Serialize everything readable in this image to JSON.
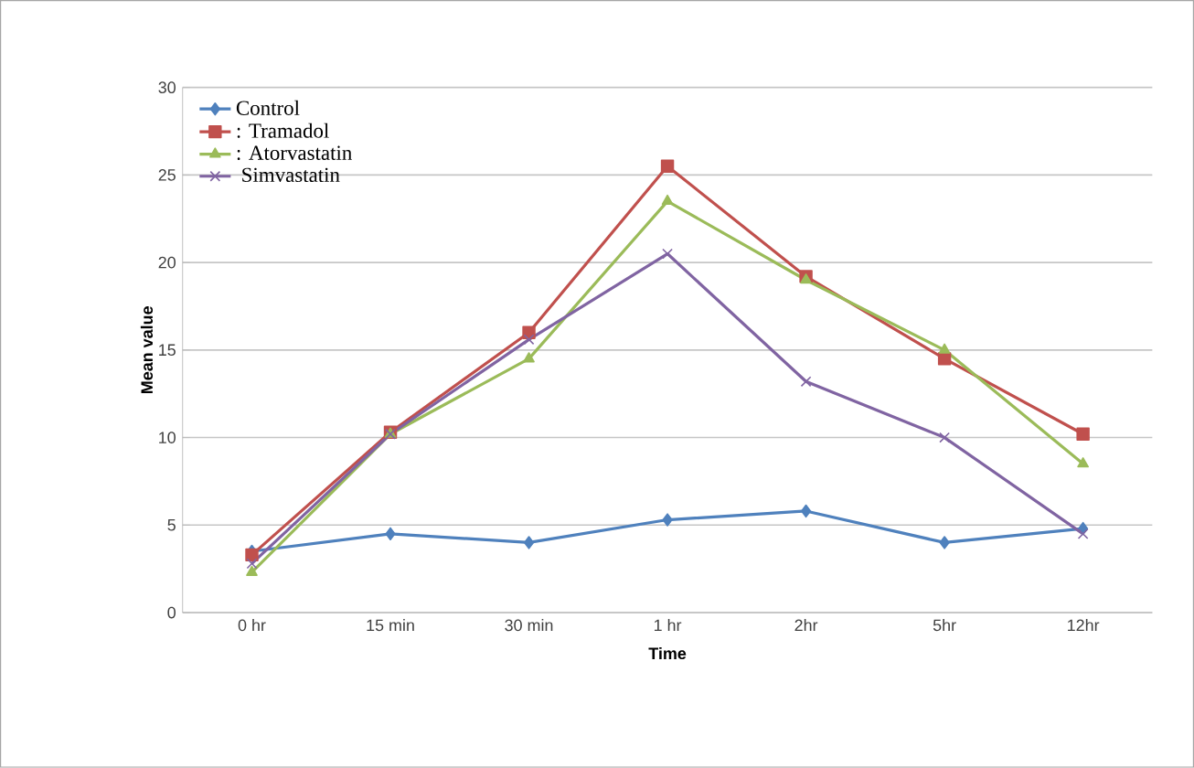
{
  "chart_data": {
    "type": "line",
    "xlabel": "Time",
    "ylabel": "Mean value",
    "categories": [
      "0 hr",
      "15 min",
      "30 min",
      "1 hr",
      "2hr",
      "5hr",
      "12hr"
    ],
    "series": [
      {
        "name": "Control",
        "color": "#4f81bd",
        "marker": "diamond",
        "values": [
          3.5,
          4.5,
          4.0,
          5.3,
          5.8,
          4.0,
          4.8
        ]
      },
      {
        "name": ":  Tramadol",
        "color": "#c0504d",
        "marker": "square",
        "values": [
          3.3,
          10.3,
          16.0,
          25.5,
          19.2,
          14.5,
          10.2
        ]
      },
      {
        "name": ": Atorvastatin",
        "color": "#9bbb59",
        "marker": "triangle",
        "values": [
          2.3,
          10.2,
          14.5,
          23.5,
          19.0,
          15.0,
          8.5
        ]
      },
      {
        "name": " Simvastatin",
        "color": "#8064a2",
        "marker": "cross",
        "values": [
          2.8,
          10.2,
          15.6,
          20.5,
          13.2,
          10.0,
          4.5
        ]
      }
    ],
    "ylim": [
      0,
      30
    ],
    "yticks": [
      0,
      5,
      10,
      15,
      20,
      25,
      30
    ],
    "grid": "y",
    "legend": "top left"
  }
}
